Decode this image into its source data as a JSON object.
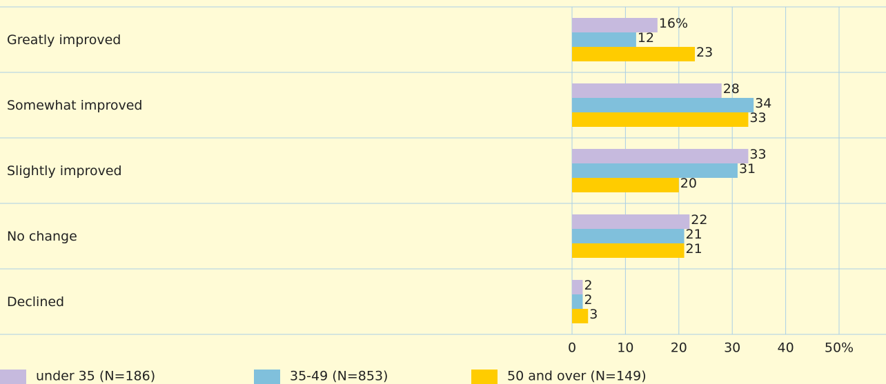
{
  "chart_data": {
    "type": "hbar",
    "categories": [
      "Greatly improved",
      "Somewhat improved",
      "Slightly improved",
      "No change",
      "Declined"
    ],
    "series": [
      {
        "name": "under 35 (N=186)",
        "color": "#c6bade",
        "values": [
          16,
          28,
          33,
          22,
          2
        ],
        "value_labels": [
          "16%",
          "28",
          "33",
          "22",
          "2"
        ]
      },
      {
        "name": "35-49 (N=853)",
        "color": "#80c0dc",
        "values": [
          12,
          34,
          31,
          21,
          2
        ]
      },
      {
        "name": "50 and over (N=149)",
        "color": "#ffcc00",
        "values": [
          23,
          33,
          20,
          21,
          3
        ]
      }
    ],
    "xlim": [
      0,
      50
    ],
    "xticks": [
      0,
      10,
      20,
      30,
      40,
      {
        "value": 50,
        "label": "50%"
      }
    ],
    "grid": true
  }
}
